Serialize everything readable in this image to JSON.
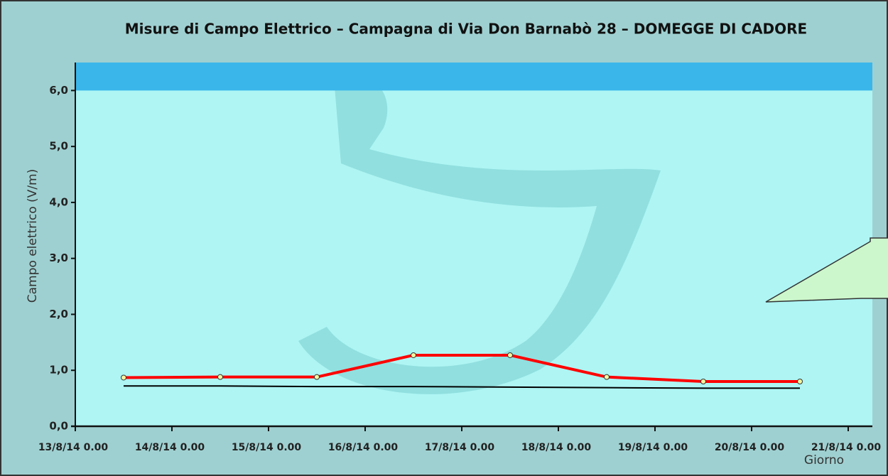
{
  "chart_data": {
    "type": "line",
    "title": "Misure di Campo Elettrico – Campagna di Via Don Barnabò 28 – DOMEGGE DI CADORE",
    "y_label": "Campo elettrico (V/m)",
    "x_label": "Giorno",
    "x": [
      "13/8/14 12.00",
      "14/8/14 12.00",
      "15/8/14 12.00",
      "16/8/14 12.00",
      "17/8/14 12.00",
      "18/8/14 12.00",
      "19/8/14 12.00",
      "20/8/14 12.00"
    ],
    "series": [
      {
        "color": "#ff0000",
        "markers": true,
        "values": [
          0.87,
          0.88,
          0.88,
          1.27,
          1.27,
          0.88,
          0.8,
          0.8
        ]
      },
      {
        "color": "#000000",
        "markers": false,
        "values": [
          0.72,
          0.72,
          0.71,
          0.71,
          0.7,
          0.69,
          0.68,
          0.68
        ]
      }
    ],
    "limit_band": {
      "color": "#3ab6ea",
      "range": [
        6,
        6.5
      ]
    },
    "xlim": [
      "13/8/14 0.00",
      "21/8/14 6.00"
    ],
    "xticks": [
      "13/8/14 0.00",
      "14/8/14 0.00",
      "15/8/14 0.00",
      "16/8/14 0.00",
      "17/8/14 0.00",
      "18/8/14 0.00",
      "19/8/14 0.00",
      "20/8/14 0.00",
      "21/8/14 0.00"
    ],
    "ylim": [
      0,
      6.5
    ],
    "yticks": [
      {
        "value": 0,
        "label": "0,0"
      },
      {
        "value": 1,
        "label": "1,0"
      },
      {
        "value": 2,
        "label": "2,0"
      },
      {
        "value": 3,
        "label": "3,0"
      },
      {
        "value": 4,
        "label": "4,0"
      },
      {
        "value": 5,
        "label": "5,0"
      },
      {
        "value": 6,
        "label": "6,0"
      }
    ],
    "grid": false
  }
}
